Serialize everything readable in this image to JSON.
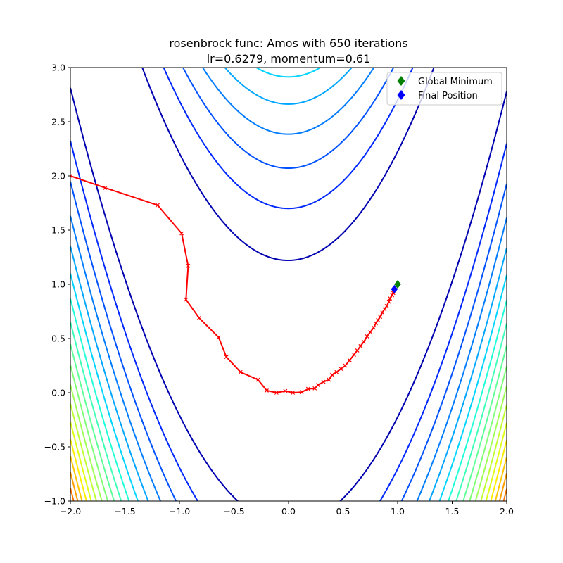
{
  "chart_data": {
    "type": "line",
    "title": "rosenbrock func: Amos with 650 iterations",
    "subtitle": "lr=0.6279, momentum=0.61",
    "xlabel": "",
    "ylabel": "",
    "xlim": [
      -2.0,
      2.0
    ],
    "ylim": [
      -1.0,
      3.0
    ],
    "xticks": [
      "−2.0",
      "−1.5",
      "−1.0",
      "−0.5",
      "0.0",
      "0.5",
      "1.0",
      "1.5",
      "2.0"
    ],
    "xtick_values": [
      -2.0,
      -1.5,
      -1.0,
      -0.5,
      0.0,
      0.5,
      1.0,
      1.5,
      2.0
    ],
    "yticks": [
      "−1.0",
      "−0.5",
      "0.0",
      "0.5",
      "1.0",
      "1.5",
      "2.0",
      "2.5",
      "3.0"
    ],
    "ytick_values": [
      -1.0,
      -0.5,
      0.0,
      0.5,
      1.0,
      1.5,
      2.0,
      2.5,
      3.0
    ],
    "grid": false,
    "legend_position": "top-right",
    "contours": {
      "function": "rosenbrock",
      "levels": [
        150,
        290,
        430,
        570,
        710,
        850,
        990,
        1130,
        1270,
        1410,
        1550,
        1690,
        1830,
        1970,
        2110,
        2250,
        2390,
        2530,
        2670
      ],
      "colors": [
        "#0000b0",
        "#0028ff",
        "#0052ff",
        "#007cff",
        "#00a6ff",
        "#00d4ff",
        "#20ffd8",
        "#40ffb8",
        "#60ff98",
        "#80ff78",
        "#a0ff58",
        "#c0ff38",
        "#e0ff18",
        "#ffee00",
        "#ffc800",
        "#ffa000",
        "#ff7800",
        "#ff5000",
        "#ff2800"
      ]
    },
    "series": [
      {
        "name": "Optimization path",
        "color": "#ff0000",
        "marker": "x",
        "points": [
          [
            -2.0,
            2.0
          ],
          [
            -1.68,
            1.89
          ],
          [
            -1.2,
            1.73
          ],
          [
            -0.98,
            1.47
          ],
          [
            -0.92,
            1.17
          ],
          [
            -0.94,
            0.86
          ],
          [
            -0.82,
            0.69
          ],
          [
            -0.64,
            0.51
          ],
          [
            -0.57,
            0.33
          ],
          [
            -0.44,
            0.19
          ],
          [
            -0.28,
            0.12
          ],
          [
            -0.2,
            0.02
          ],
          [
            -0.11,
            0.0
          ],
          [
            -0.03,
            0.015
          ],
          [
            0.04,
            0.0
          ],
          [
            0.12,
            0.005
          ],
          [
            0.18,
            0.035
          ],
          [
            0.24,
            0.04
          ],
          [
            0.27,
            0.07
          ],
          [
            0.32,
            0.1
          ],
          [
            0.37,
            0.12
          ],
          [
            0.4,
            0.165
          ],
          [
            0.44,
            0.19
          ],
          [
            0.48,
            0.22
          ],
          [
            0.52,
            0.25
          ],
          [
            0.56,
            0.3
          ],
          [
            0.6,
            0.35
          ],
          [
            0.63,
            0.39
          ],
          [
            0.66,
            0.43
          ],
          [
            0.69,
            0.47
          ],
          [
            0.72,
            0.52
          ],
          [
            0.75,
            0.56
          ],
          [
            0.78,
            0.6
          ],
          [
            0.8,
            0.64
          ],
          [
            0.82,
            0.67
          ],
          [
            0.84,
            0.7
          ],
          [
            0.86,
            0.74
          ],
          [
            0.88,
            0.77
          ],
          [
            0.9,
            0.8
          ],
          [
            0.92,
            0.84
          ],
          [
            0.93,
            0.87
          ],
          [
            0.95,
            0.9
          ],
          [
            0.96,
            0.92
          ],
          [
            0.97,
            0.94
          ]
        ]
      }
    ],
    "markers": [
      {
        "name": "Global Minimum",
        "x": 1.0,
        "y": 1.0,
        "color": "#008000",
        "shape": "diamond"
      },
      {
        "name": "Final Position",
        "x": 0.97,
        "y": 0.955,
        "color": "#0000ff",
        "shape": "diamond"
      }
    ]
  },
  "legend": {
    "items": [
      {
        "label": "Global Minimum",
        "color": "#008000"
      },
      {
        "label": "Final Position",
        "color": "#0000ff"
      }
    ]
  }
}
